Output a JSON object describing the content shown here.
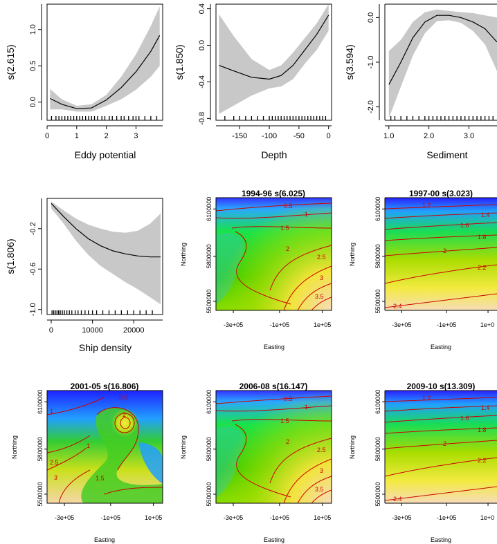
{
  "chart_data": [
    {
      "type": "line",
      "xlabel": "Eddy potential",
      "ylabel": "s(2.615)",
      "xlim": [
        0,
        3.9
      ],
      "ylim": [
        -0.25,
        1.35
      ],
      "xticks": [
        0,
        1,
        2,
        3
      ],
      "yticks": [
        0.0,
        0.5,
        1.0
      ],
      "ytick_labels": [
        "0.0",
        "0.5",
        "1.0"
      ],
      "x": [
        0.1,
        0.5,
        1.0,
        1.5,
        2.0,
        2.5,
        3.0,
        3.5,
        3.8
      ],
      "y": [
        0.05,
        -0.03,
        -0.09,
        -0.08,
        0.03,
        0.2,
        0.42,
        0.7,
        0.92
      ],
      "lower": [
        -0.1,
        -0.1,
        -0.13,
        -0.13,
        -0.05,
        0.04,
        0.17,
        0.35,
        0.5
      ],
      "upper": [
        0.18,
        0.04,
        -0.05,
        -0.03,
        0.1,
        0.35,
        0.66,
        1.05,
        1.32
      ],
      "rug": [
        0.15,
        0.3,
        0.4,
        0.5,
        0.6,
        0.7,
        0.8,
        0.9,
        1.0,
        1.1,
        1.2,
        1.3,
        1.4,
        1.5,
        1.6,
        1.7,
        1.85,
        1.95,
        2.1,
        2.2,
        2.35,
        2.5,
        2.6,
        2.75,
        2.9,
        3.0,
        3.1,
        3.3,
        3.5,
        3.7
      ]
    },
    {
      "type": "line",
      "xlabel": "Depth",
      "ylabel": "s(1.850)",
      "xlim": [
        -190,
        5
      ],
      "ylim": [
        -0.82,
        0.45
      ],
      "xticks": [
        -150,
        -100,
        -50,
        0
      ],
      "yticks": [
        -0.8,
        -0.4,
        0.0,
        0.4
      ],
      "ytick_labels": [
        "-0.8",
        "-0.4",
        "0.0",
        "0.4"
      ],
      "x": [
        -185,
        -160,
        -130,
        -100,
        -80,
        -60,
        -40,
        -20,
        0
      ],
      "y": [
        -0.22,
        -0.28,
        -0.35,
        -0.37,
        -0.33,
        -0.22,
        -0.05,
        0.12,
        0.33
      ],
      "lower": [
        -0.75,
        -0.66,
        -0.55,
        -0.47,
        -0.45,
        -0.37,
        -0.2,
        -0.05,
        0.16
      ],
      "upper": [
        0.34,
        0.1,
        -0.15,
        -0.27,
        -0.22,
        -0.08,
        0.08,
        0.24,
        0.45
      ],
      "rug": [
        -175,
        -160,
        -150,
        -140,
        -130,
        -120,
        -110,
        -100,
        -95,
        -90,
        -85,
        -80,
        -75,
        -70,
        -65,
        -60,
        -55,
        -50,
        -45,
        -40,
        -35,
        -30,
        -25,
        -20,
        -15,
        -10,
        -5
      ]
    },
    {
      "type": "line",
      "xlabel": "Sediment",
      "ylabel": "s(3.594)",
      "xlim": [
        0.9,
        3.7
      ],
      "ylim": [
        -2.3,
        0.3
      ],
      "xticks": [
        1.0,
        2.0,
        3.0
      ],
      "xtick_labels": [
        "1.0",
        "2.0",
        "3.0"
      ],
      "yticks": [
        -2.0,
        -1.0,
        0.0
      ],
      "ytick_labels": [
        "-2.0",
        "-1.0",
        "0.0"
      ],
      "x": [
        1.0,
        1.3,
        1.6,
        1.9,
        2.2,
        2.5,
        2.8,
        3.1,
        3.4,
        3.7
      ],
      "y": [
        -1.5,
        -1.0,
        -0.45,
        -0.1,
        0.05,
        0.05,
        0.0,
        -0.1,
        -0.25,
        -0.55
      ],
      "lower": [
        -2.25,
        -1.55,
        -0.85,
        -0.35,
        -0.08,
        -0.06,
        -0.12,
        -0.3,
        -0.6,
        -1.2
      ],
      "upper": [
        -0.75,
        -0.5,
        -0.1,
        0.12,
        0.18,
        0.15,
        0.12,
        0.1,
        0.05,
        0.0
      ],
      "rug": [
        1.05,
        1.15,
        1.3,
        1.45,
        1.6,
        1.75,
        1.9,
        2.0,
        2.1,
        2.2,
        2.3,
        2.4,
        2.5,
        2.6,
        2.7,
        2.8,
        2.9,
        3.0,
        3.1,
        3.2,
        3.3,
        3.4,
        3.5,
        3.6
      ]
    },
    {
      "type": "line",
      "xlabel": "Ship density",
      "ylabel": "s(1.806)",
      "xlim": [
        -1000,
        27000
      ],
      "ylim": [
        -1.05,
        0.1
      ],
      "xticks": [
        0,
        10000,
        20000
      ],
      "yticks": [
        -1.0,
        -0.6,
        -0.2
      ],
      "ytick_labels": [
        "-1.0",
        "-0.6",
        "-0.2"
      ],
      "x": [
        0,
        3000,
        6000,
        9000,
        12000,
        15000,
        18000,
        21000,
        24000,
        26500
      ],
      "y": [
        0.05,
        -0.08,
        -0.2,
        -0.3,
        -0.37,
        -0.42,
        -0.45,
        -0.47,
        -0.48,
        -0.48
      ],
      "lower": [
        0.0,
        -0.15,
        -0.32,
        -0.46,
        -0.57,
        -0.65,
        -0.73,
        -0.8,
        -0.88,
        -0.95
      ],
      "upper": [
        0.07,
        -0.02,
        -0.1,
        -0.16,
        -0.2,
        -0.23,
        -0.24,
        -0.22,
        -0.15,
        -0.05
      ],
      "rug": [
        200,
        600,
        1000,
        1400,
        1800,
        2200,
        2700,
        3200,
        3800,
        4400,
        5000,
        5800,
        6500,
        7300,
        8200,
        9000,
        10000,
        11000,
        12500,
        14000,
        15500,
        17000,
        18500,
        20000,
        21500,
        23000,
        24500
      ]
    },
    {
      "type": "heatmap",
      "title": "1994-96 s(6.025)",
      "xlabel": "Easting",
      "ylabel": "Northing",
      "xticks": [
        "-3e+05",
        "-1e+05",
        "1e+05"
      ],
      "yticks": [
        "5500000",
        "5800000",
        "6100000"
      ],
      "contour_labels": [
        "0.5",
        "1",
        "1.5",
        "2",
        "2.5",
        "3",
        "3.5"
      ]
    },
    {
      "type": "heatmap",
      "title": "1997-00 s(3.023)",
      "xlabel": "Easting",
      "ylabel": "Northing",
      "xticks": [
        "-3e+05",
        "-1e+05",
        "1e+0"
      ],
      "yticks": [
        "5500000",
        "5800000",
        "6100000"
      ],
      "contour_labels": [
        "1.2",
        "1.4",
        "1.6",
        "1.8",
        "2",
        "2.2",
        "2.4"
      ]
    },
    {
      "type": "heatmap",
      "title": "2001-05 s(16.806)",
      "xlabel": "Easting",
      "ylabel": "Northing",
      "xticks": [
        "-3e+05",
        "-1e+05",
        "1e+05"
      ],
      "yticks": [
        "5500000",
        "5800000",
        "6100000"
      ],
      "contour_labels": [
        "0.5",
        "1",
        "1.5",
        "2",
        "2.5",
        "3",
        "1"
      ]
    },
    {
      "type": "heatmap",
      "title": "2006-08 s(16.147)",
      "xlabel": "Easting",
      "ylabel": "Northing",
      "xticks": [
        "-3e+05",
        "-1e+05",
        "1e+05"
      ],
      "yticks": [
        "5500000",
        "5800000",
        "6100000"
      ],
      "contour_labels": [
        "0.5",
        "1",
        "1.5",
        "2",
        "2.5",
        "3",
        "3.5"
      ]
    },
    {
      "type": "heatmap",
      "title": "2009-10 s(13.309)",
      "xlabel": "Easting",
      "ylabel": "Northing",
      "xticks": [
        "-3e+05",
        "-1e+05",
        "1e+0"
      ],
      "yticks": [
        "5500000",
        "5800000",
        "6100000"
      ],
      "contour_labels": [
        "1.2",
        "1.4",
        "1.6",
        "1.8",
        "2",
        "2.2",
        "2.4"
      ]
    }
  ]
}
